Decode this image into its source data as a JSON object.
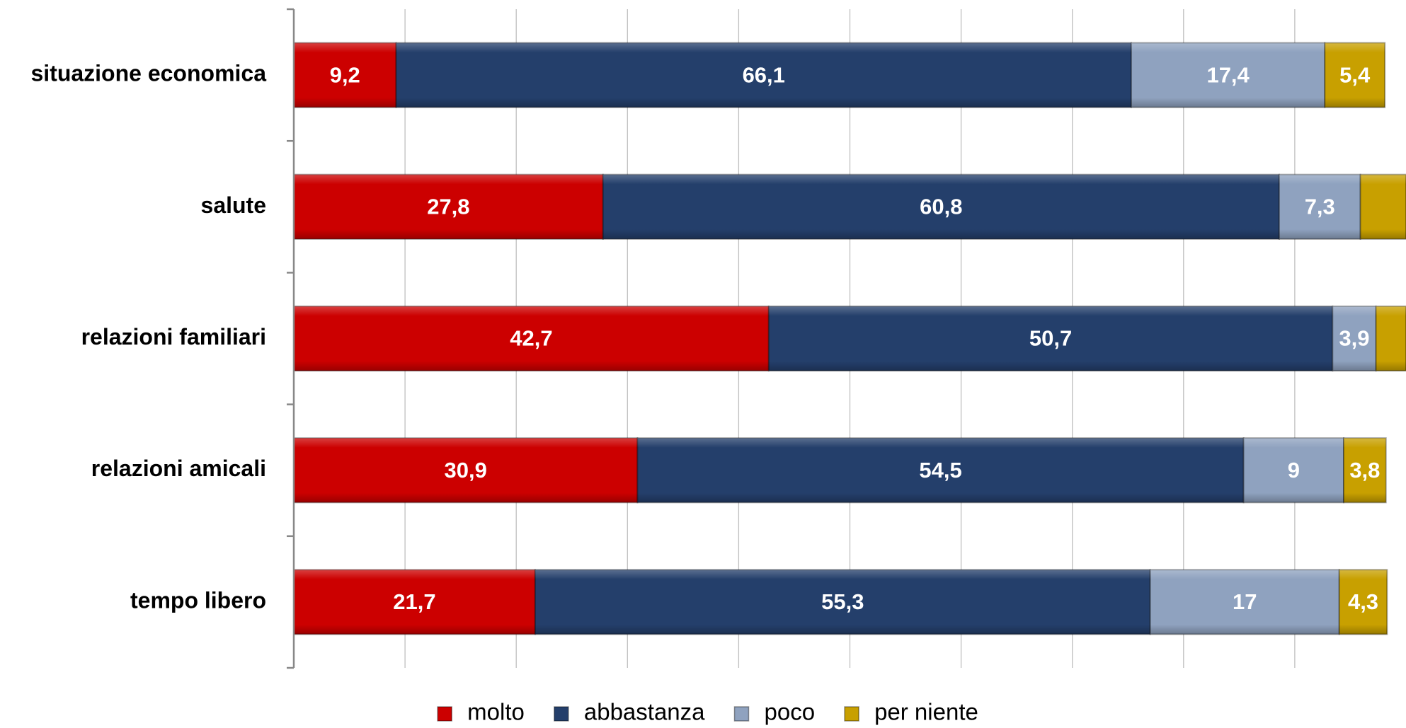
{
  "chart_data": {
    "type": "stacked_bar_horizontal",
    "categories": [
      "situazione economica",
      "salute",
      "relazioni familiari",
      "relazioni amicali",
      "tempo libero"
    ],
    "series": [
      {
        "name": "molto",
        "color": "#cc0000",
        "values": [
          9.2,
          27.8,
          42.7,
          30.9,
          21.7
        ],
        "value_labels": [
          "9,2",
          "27,8",
          "42,7",
          "30,9",
          "21,7"
        ]
      },
      {
        "name": "abbastanza",
        "color": "#243f6b",
        "values": [
          66.1,
          60.8,
          50.7,
          54.5,
          55.3
        ],
        "value_labels": [
          "66,1",
          "60,8",
          "50,7",
          "54,5",
          "55,3"
        ]
      },
      {
        "name": "poco",
        "color": "#8fa2bf",
        "values": [
          17.4,
          7.3,
          3.9,
          9,
          17
        ],
        "value_labels": [
          "17,4",
          "7,3",
          "3,9",
          "9",
          "17"
        ]
      },
      {
        "name": "per niente",
        "color": "#c8a000",
        "values": [
          5.4,
          4.1,
          2.7,
          3.8,
          4.3
        ],
        "value_labels": [
          "5,4",
          null,
          null,
          "3,8",
          "4,3"
        ]
      }
    ],
    "xlim": [
      0,
      100
    ],
    "xticks": [
      0,
      10,
      20,
      30,
      40,
      50,
      60,
      70,
      80,
      90,
      100
    ],
    "grid": true,
    "legend": "bottom"
  }
}
